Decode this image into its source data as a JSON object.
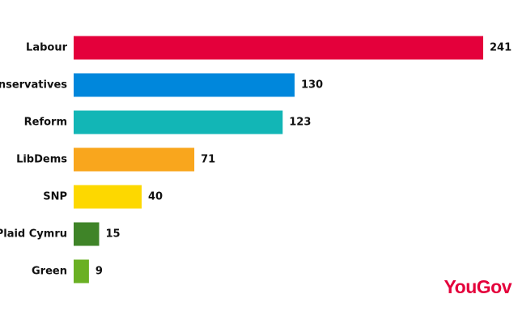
{
  "chart_data": {
    "type": "hbar",
    "categories": [
      "Labour",
      "Conservatives",
      "Reform",
      "LibDems",
      "SNP",
      "Plaid Cymru",
      "Green"
    ],
    "values": [
      241,
      130,
      123,
      71,
      40,
      15,
      9
    ],
    "colors": [
      "#e4003b",
      "#0087dc",
      "#12b6b6",
      "#f9a61d",
      "#fdd800",
      "#3f8428",
      "#6ab023"
    ],
    "source": "YouGov"
  }
}
